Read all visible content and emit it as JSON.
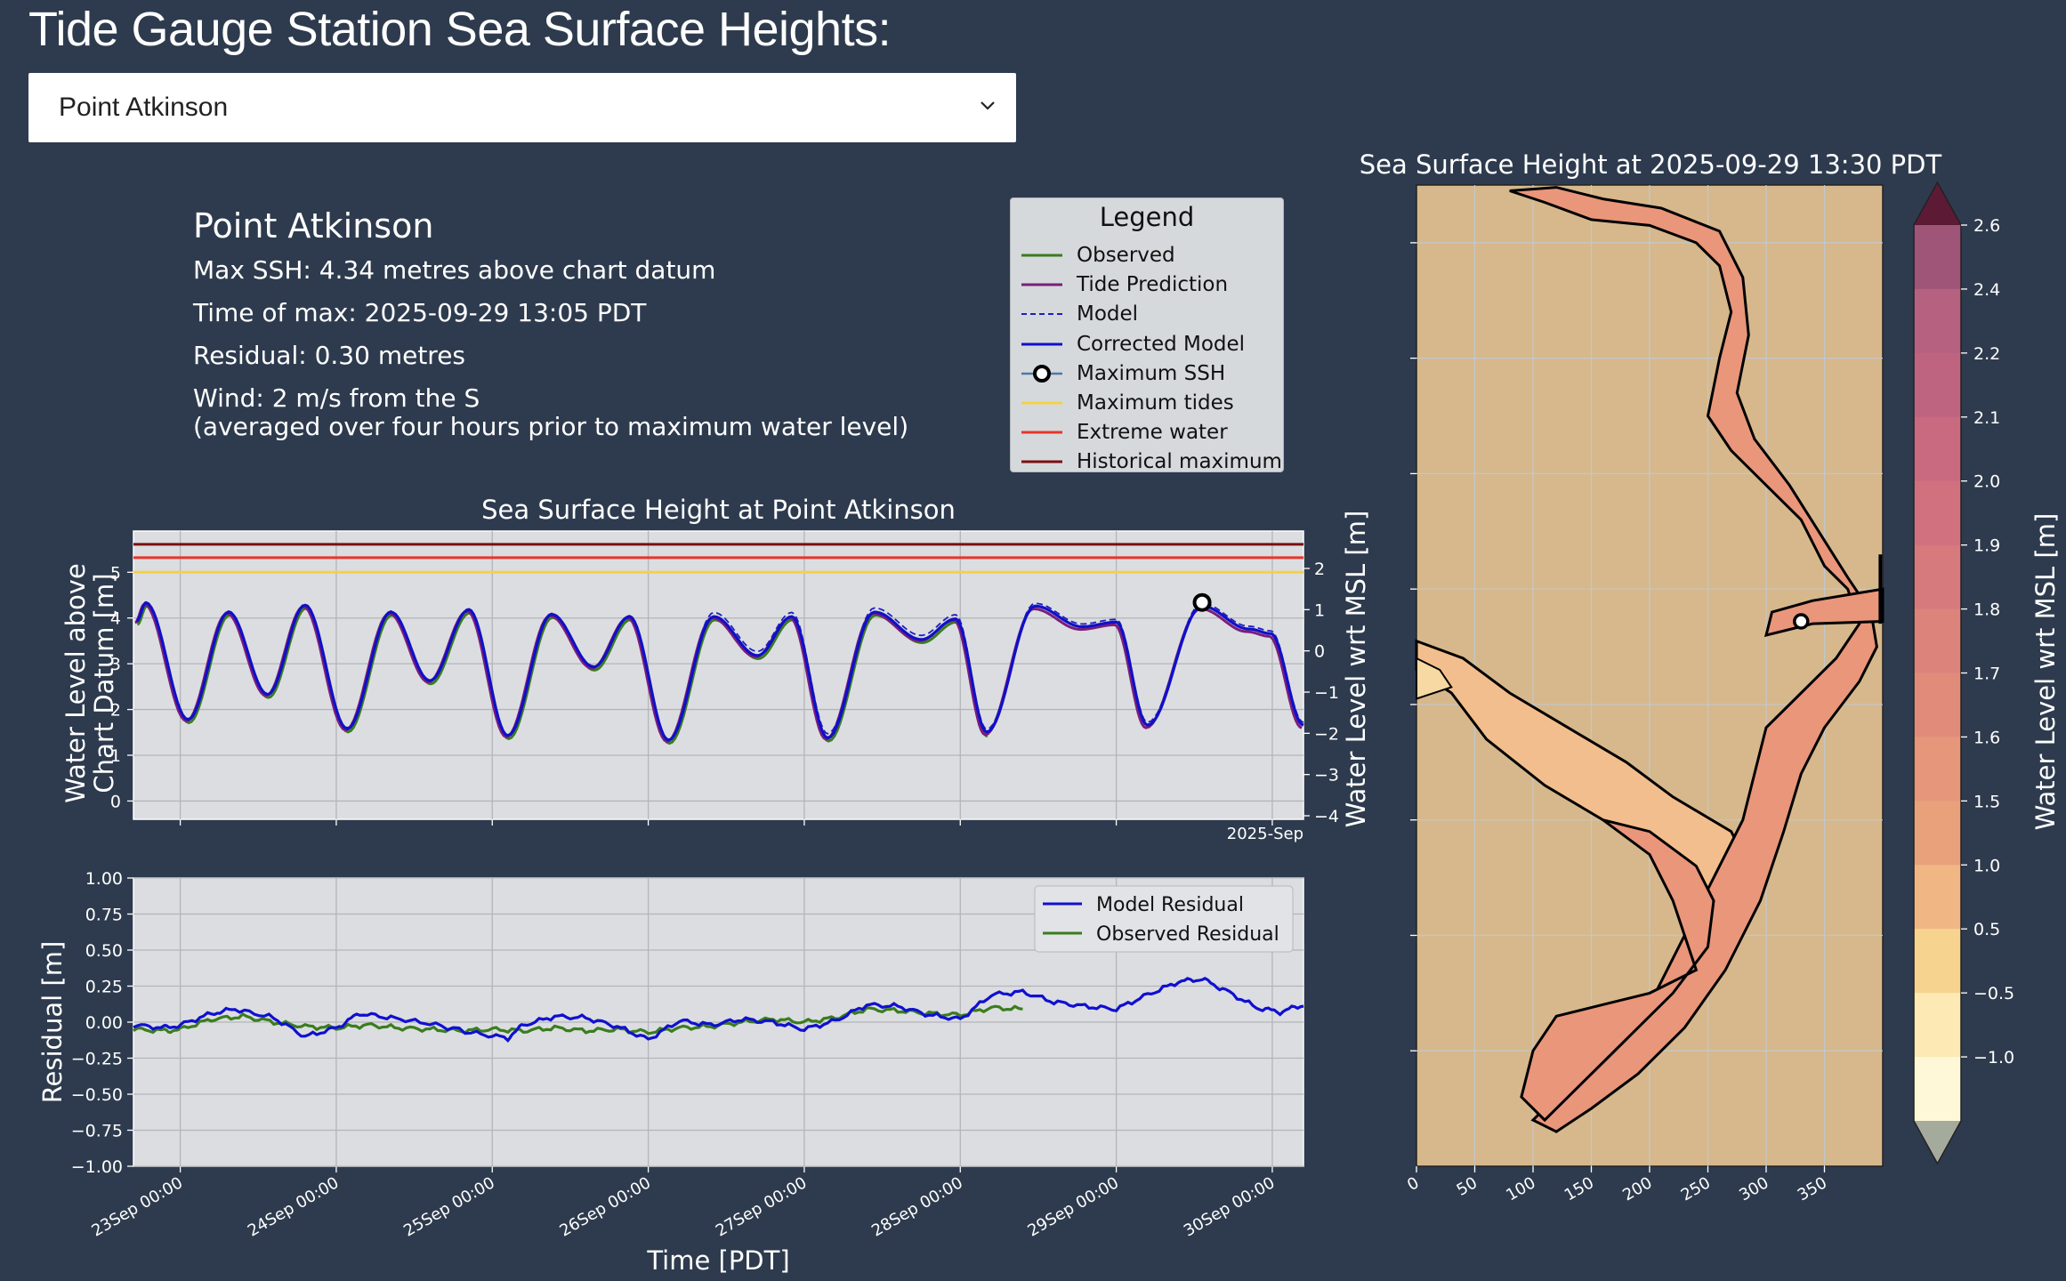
{
  "page": {
    "title": "Tide Gauge Station Sea Surface Heights:"
  },
  "selector": {
    "selected": "Point Atkinson"
  },
  "info": {
    "station": "Point Atkinson",
    "max_ssh": "Max SSH: 4.34 metres above chart datum",
    "time_of_max": "Time of max: 2025-09-29 13:05 PDT",
    "residual": "Residual: 0.30 metres",
    "wind": "Wind: 2 m/s from the S",
    "wind_note": "(averaged over four hours prior to maximum water level)"
  },
  "legend": {
    "title": "Legend",
    "items": [
      {
        "label": "Observed",
        "color": "#3a7d1e",
        "style": "solid"
      },
      {
        "label": "Tide Prediction",
        "color": "#7b1e7a",
        "style": "solid"
      },
      {
        "label": "Model",
        "color": "#1f1fbf",
        "style": "dashed"
      },
      {
        "label": "Corrected Model",
        "color": "#1010c8",
        "style": "solid"
      },
      {
        "label": "Maximum SSH",
        "color": "#000000",
        "style": "marker"
      },
      {
        "label": "Maximum tides",
        "color": "#f5d142",
        "style": "solid"
      },
      {
        "label": "Extreme water",
        "color": "#e8352a",
        "style": "solid"
      },
      {
        "label": "Historical maximum",
        "color": "#7a1010",
        "style": "solid"
      }
    ]
  },
  "chart_data": [
    {
      "type": "line",
      "title": "Sea Surface Height at Point Atkinson",
      "ylabel": "Water Level above Chart Datum [m]",
      "ylabel_line1": "Water Level above",
      "ylabel_line2": "Chart Datum [m]",
      "ylabel_right": "Water Level wrt MSL [m]",
      "ylim": [
        -0.4,
        5.9
      ],
      "yticks": [
        "0",
        "1",
        "2",
        "3",
        "4",
        "5"
      ],
      "yticks_right": [
        "−4",
        "−3",
        "−2",
        "−1",
        "0",
        "1",
        "2"
      ],
      "x_offset_label": "2025-Sep",
      "xlim_days": [
        -0.3,
        7.2
      ],
      "reference_lines": [
        {
          "name": "Historical maximum",
          "value": 5.61,
          "color": "#7a1010"
        },
        {
          "name": "Extreme water",
          "value": 5.32,
          "color": "#e8352a"
        },
        {
          "name": "Maximum tides",
          "value": 5.0,
          "color": "#f5d142"
        }
      ],
      "extrema": [
        {
          "day": -0.28,
          "value": 3.9
        },
        {
          "day": -0.22,
          "value": 4.3
        },
        {
          "day": 0.05,
          "value": 1.75
        },
        {
          "day": 0.31,
          "value": 4.1
        },
        {
          "day": 0.56,
          "value": 2.3
        },
        {
          "day": 0.8,
          "value": 4.25
        },
        {
          "day": 1.07,
          "value": 1.55
        },
        {
          "day": 1.35,
          "value": 4.1
        },
        {
          "day": 1.6,
          "value": 2.6
        },
        {
          "day": 1.85,
          "value": 4.15
        },
        {
          "day": 2.1,
          "value": 1.4
        },
        {
          "day": 2.38,
          "value": 4.05
        },
        {
          "day": 2.65,
          "value": 2.9
        },
        {
          "day": 2.88,
          "value": 4.0
        },
        {
          "day": 3.13,
          "value": 1.3
        },
        {
          "day": 3.42,
          "value": 4.0
        },
        {
          "day": 3.7,
          "value": 3.15
        },
        {
          "day": 3.92,
          "value": 4.0
        },
        {
          "day": 4.15,
          "value": 1.35
        },
        {
          "day": 4.45,
          "value": 4.1
        },
        {
          "day": 4.75,
          "value": 3.5
        },
        {
          "day": 4.97,
          "value": 3.95
        },
        {
          "day": 5.17,
          "value": 1.45
        },
        {
          "day": 5.48,
          "value": 4.2
        },
        {
          "day": 5.78,
          "value": 3.75
        },
        {
          "day": 6.0,
          "value": 3.85
        },
        {
          "day": 6.2,
          "value": 1.6
        },
        {
          "day": 6.55,
          "value": 4.2
        },
        {
          "day": 6.85,
          "value": 3.7
        },
        {
          "day": 6.99,
          "value": 3.6
        },
        {
          "day": 7.2,
          "value": 1.6
        }
      ],
      "maximum_ssh": {
        "day": 6.55,
        "value": 4.34
      }
    },
    {
      "type": "line",
      "ylabel": "Residual [m]",
      "xlabel": "Time [PDT]",
      "ylim": [
        -1.0,
        1.0
      ],
      "yticks": [
        "−1.00",
        "−0.75",
        "−0.50",
        "−0.25",
        "0.00",
        "0.25",
        "0.50",
        "0.75",
        "1.00"
      ],
      "x_categories": [
        "23Sep 00:00",
        "24Sep 00:00",
        "25Sep 00:00",
        "26Sep 00:00",
        "27Sep 00:00",
        "28Sep 00:00",
        "29Sep 00:00",
        "30Sep 00:00"
      ],
      "xlim_days": [
        -0.3,
        7.2
      ],
      "series": [
        {
          "name": "Model Residual",
          "color": "#1010d0",
          "x": [
            -0.3,
            -0.1,
            0.0,
            0.2,
            0.35,
            0.6,
            0.8,
            1.0,
            1.15,
            1.35,
            1.6,
            1.9,
            2.1,
            2.2,
            2.4,
            2.6,
            2.8,
            3.0,
            3.2,
            3.4,
            3.6,
            3.8,
            4.0,
            4.2,
            4.4,
            4.6,
            4.8,
            5.0,
            5.2,
            5.4,
            5.6,
            5.8,
            6.0,
            6.2,
            6.4,
            6.55,
            6.7,
            6.9,
            7.05,
            7.2
          ],
          "values": [
            -0.02,
            -0.04,
            -0.02,
            0.06,
            0.09,
            0.03,
            -0.1,
            -0.04,
            0.06,
            0.03,
            -0.01,
            -0.08,
            -0.11,
            -0.02,
            0.04,
            0.03,
            -0.03,
            -0.12,
            0.01,
            -0.02,
            0.02,
            0.0,
            -0.05,
            0.01,
            0.12,
            0.11,
            0.05,
            0.02,
            0.19,
            0.21,
            0.14,
            0.11,
            0.09,
            0.19,
            0.28,
            0.3,
            0.22,
            0.1,
            0.07,
            0.12
          ]
        },
        {
          "name": "Observed Residual",
          "color": "#3a7d1e",
          "x": [
            -0.3,
            -0.1,
            0.0,
            0.2,
            0.4,
            0.6,
            0.8,
            1.0,
            1.2,
            1.4,
            1.6,
            1.8,
            2.0,
            2.2,
            2.4,
            2.6,
            2.8,
            3.0,
            3.2,
            3.4,
            3.6,
            3.8,
            4.0,
            4.2,
            4.4,
            4.6,
            4.8,
            5.0,
            5.2,
            5.4
          ],
          "values": [
            -0.05,
            -0.06,
            -0.05,
            0.02,
            0.04,
            0.0,
            -0.03,
            -0.04,
            -0.02,
            -0.04,
            -0.05,
            -0.06,
            -0.05,
            -0.06,
            -0.04,
            -0.06,
            -0.05,
            -0.07,
            -0.04,
            -0.03,
            0.0,
            0.02,
            0.0,
            0.03,
            0.09,
            0.08,
            0.06,
            0.05,
            0.1,
            0.09
          ]
        }
      ]
    },
    {
      "type": "heatmap",
      "title": "Sea Surface Height at 2025-09-29 13:30 PDT",
      "colorbar_label": "Water Level wrt MSL [m]",
      "colorbar_ticks": [
        "2.6",
        "2.4",
        "2.2",
        "2.1",
        "2.0",
        "1.9",
        "1.8",
        "1.7",
        "1.6",
        "1.5",
        "1.0",
        "0.5",
        "−0.5",
        "−1.0"
      ],
      "colorbar_colors": [
        "#9e5577",
        "#b5617f",
        "#bf6480",
        "#c96a80",
        "#d1717f",
        "#d67a7d",
        "#dc837c",
        "#e18c7b",
        "#e5967b",
        "#e9a17c",
        "#f0b784",
        "#f6d48f",
        "#fce9b4",
        "#fff8d8"
      ],
      "extend_high_color": "#5c1a35",
      "extend_low_color": "#a5ab9c",
      "xticks": [
        "0",
        "50",
        "100",
        "150",
        "200",
        "250",
        "300",
        "350"
      ],
      "land_color": "#d6b88c",
      "station_marker": {
        "x": 330,
        "y": 472
      }
    }
  ]
}
